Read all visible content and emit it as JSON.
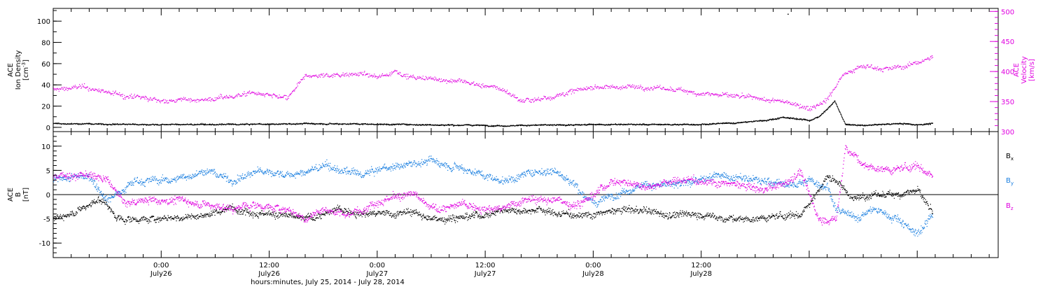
{
  "chart_data": [
    {
      "type": "scatter",
      "panel": "top",
      "ylabel": [
        "ACE",
        "Ion Density",
        "[cm^-3]"
      ],
      "y2label": [
        "ACE",
        "Velocity",
        "[km/s]"
      ],
      "ylim": [
        -4,
        112
      ],
      "y2lim": [
        300,
        505
      ],
      "yticks": [
        0,
        20,
        40,
        60,
        80,
        100
      ],
      "y2ticks": [
        300,
        350,
        400,
        450,
        500
      ],
      "series": [
        {
          "axis": "left",
          "color": "#000000",
          "keyframes": [
            [
              0,
              4
            ],
            [
              10,
              3
            ],
            [
              20,
              3
            ],
            [
              30,
              4
            ],
            [
              40,
              3
            ],
            [
              50,
              2
            ],
            [
              60,
              3
            ],
            [
              70,
              3
            ],
            [
              75,
              4
            ],
            [
              78,
              6
            ],
            [
              80,
              8
            ],
            [
              81,
              10
            ],
            [
              82,
              9
            ],
            [
              83,
              8
            ],
            [
              84,
              7
            ],
            [
              85,
              10
            ],
            [
              86,
              18
            ],
            [
              86.8,
              25
            ],
            [
              87.5,
              12
            ],
            [
              88,
              3
            ],
            [
              90,
              2
            ],
            [
              92,
              3
            ],
            [
              94,
              4
            ],
            [
              96,
              3
            ],
            [
              97.7,
              4
            ]
          ]
        },
        {
          "axis": "right",
          "color": "#e000e0",
          "keyframes": [
            [
              0,
              370
            ],
            [
              3,
              375
            ],
            [
              8,
              360
            ],
            [
              12,
              352
            ],
            [
              18,
              355
            ],
            [
              22,
              365
            ],
            [
              24,
              360
            ],
            [
              26,
              355
            ],
            [
              28,
              392
            ],
            [
              34,
              398
            ],
            [
              36,
              390
            ],
            [
              38,
              402
            ],
            [
              40,
              390
            ],
            [
              45,
              385
            ],
            [
              50,
              370
            ],
            [
              52,
              352
            ],
            [
              54,
              355
            ],
            [
              60,
              375
            ],
            [
              66,
              375
            ],
            [
              72,
              365
            ],
            [
              78,
              355
            ],
            [
              82,
              348
            ],
            [
              84,
              340
            ],
            [
              86,
              355
            ],
            [
              87.5,
              390
            ],
            [
              88,
              400
            ],
            [
              90,
              410
            ],
            [
              93,
              405
            ],
            [
              95,
              410
            ],
            [
              97.7,
              425
            ]
          ]
        }
      ],
      "annotations": [
        {
          "x": 81.6,
          "y": 107
        }
      ]
    },
    {
      "type": "scatter",
      "panel": "bottom",
      "ylabel": [
        "ACE",
        "B",
        "[nT]"
      ],
      "ylim": [
        -13,
        13
      ],
      "yticks": [
        -10,
        -5,
        0,
        5,
        10
      ],
      "legend_position": "right",
      "series": [
        {
          "name": "B_x",
          "color": "#000000",
          "keyframes": [
            [
              0,
              -5
            ],
            [
              3,
              -3
            ],
            [
              5,
              -1
            ],
            [
              6,
              -2
            ],
            [
              7,
              -5
            ],
            [
              10,
              -5
            ],
            [
              16,
              -4.5
            ],
            [
              20,
              -2.5
            ],
            [
              24,
              -4
            ],
            [
              28,
              -5
            ],
            [
              32,
              -3
            ],
            [
              36,
              -4
            ],
            [
              40,
              -3.5
            ],
            [
              42,
              -5
            ],
            [
              48,
              -4
            ],
            [
              50,
              -3
            ],
            [
              54,
              -3
            ],
            [
              56,
              -4
            ],
            [
              60,
              -4
            ],
            [
              64,
              -3
            ],
            [
              68,
              -4
            ],
            [
              72,
              -4
            ],
            [
              75,
              -5
            ],
            [
              78,
              -5
            ],
            [
              83,
              -4
            ],
            [
              85,
              1
            ],
            [
              86,
              4
            ],
            [
              87,
              3
            ],
            [
              88,
              1
            ],
            [
              89,
              -1
            ],
            [
              90,
              0
            ],
            [
              93,
              0
            ],
            [
              96,
              1
            ],
            [
              97.7,
              -4
            ]
          ]
        },
        {
          "name": "B_y",
          "color": "#1a7fe0",
          "keyframes": [
            [
              0,
              3
            ],
            [
              4,
              4
            ],
            [
              6,
              -1
            ],
            [
              9,
              3
            ],
            [
              13,
              3
            ],
            [
              15,
              4
            ],
            [
              17,
              5
            ],
            [
              20,
              3
            ],
            [
              23,
              5
            ],
            [
              27,
              4
            ],
            [
              30,
              6
            ],
            [
              34,
              4
            ],
            [
              38,
              6
            ],
            [
              42,
              7
            ],
            [
              45,
              6
            ],
            [
              48,
              4
            ],
            [
              50,
              3
            ],
            [
              54,
              5
            ],
            [
              56,
              5
            ],
            [
              58,
              2
            ],
            [
              60,
              -2
            ],
            [
              62,
              0
            ],
            [
              65,
              2
            ],
            [
              69,
              2
            ],
            [
              71,
              3
            ],
            [
              74,
              4
            ],
            [
              78,
              3
            ],
            [
              82,
              2
            ],
            [
              84,
              3
            ],
            [
              86,
              2
            ],
            [
              87,
              -3
            ],
            [
              89,
              -5
            ],
            [
              91,
              -3
            ],
            [
              94,
              -5
            ],
            [
              96,
              -8
            ],
            [
              97.7,
              -4
            ]
          ]
        },
        {
          "name": "B_z",
          "color": "#e000e0",
          "keyframes": [
            [
              0,
              4
            ],
            [
              4,
              4
            ],
            [
              6,
              3
            ],
            [
              8,
              -2
            ],
            [
              10,
              -1
            ],
            [
              14,
              -1
            ],
            [
              17,
              -2
            ],
            [
              20,
              -3
            ],
            [
              22,
              -2
            ],
            [
              26,
              -3
            ],
            [
              28,
              -5
            ],
            [
              30,
              -3
            ],
            [
              33,
              -4
            ],
            [
              36,
              -1
            ],
            [
              40,
              0
            ],
            [
              42,
              -3
            ],
            [
              46,
              -2
            ],
            [
              50,
              -3
            ],
            [
              52,
              -1
            ],
            [
              56,
              -1
            ],
            [
              58,
              -2
            ],
            [
              60,
              0
            ],
            [
              62,
              3
            ],
            [
              66,
              2
            ],
            [
              70,
              3
            ],
            [
              72,
              3
            ],
            [
              76,
              2
            ],
            [
              79,
              1
            ],
            [
              81,
              2
            ],
            [
              83,
              5
            ],
            [
              85,
              -5
            ],
            [
              87,
              -5
            ],
            [
              88,
              10
            ],
            [
              90,
              6
            ],
            [
              93,
              5
            ],
            [
              96,
              6
            ],
            [
              97.7,
              4
            ]
          ]
        }
      ],
      "legend": [
        "B",
        "B",
        "B"
      ],
      "legend_subscripts": [
        "x",
        "y",
        "z"
      ]
    }
  ],
  "x_axis": {
    "range_hours": [
      0,
      105
    ],
    "title": "hours:minutes, July 25, 2014 - July 28, 2014",
    "major_ticks": [
      {
        "hour": 12,
        "time": "0:00",
        "date": "July26"
      },
      {
        "hour": 24,
        "time": "12:00",
        "date": "July26"
      },
      {
        "hour": 36,
        "time": "0:00",
        "date": "July27"
      },
      {
        "hour": 48,
        "time": "12:00",
        "date": "July27"
      },
      {
        "hour": 60,
        "time": "0:00",
        "date": "July28"
      },
      {
        "hour": 72,
        "time": "12:00",
        "date": "July28"
      }
    ]
  },
  "colors": {
    "black": "#000000",
    "magenta": "#e000e0",
    "blue": "#1a7fe0"
  }
}
